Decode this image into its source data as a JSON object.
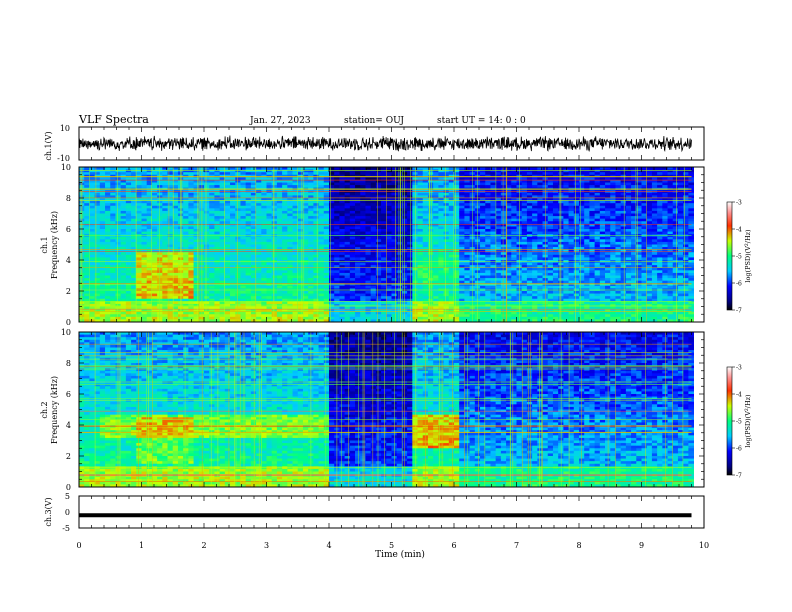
{
  "header": {
    "title": "VLF Spectra",
    "date": "Jan. 27, 2023",
    "station": "station= OUJ",
    "start": "start  UT =   14: 0  : 0"
  },
  "chart_data": [
    {
      "type": "line",
      "panel": "waveform-ch1",
      "ylabel": "ch.1(V)",
      "ylim": [
        -10,
        10
      ],
      "yticks": [
        "10",
        "-10"
      ],
      "xlim": [
        0,
        10
      ],
      "description_values": {
        "mean": 0,
        "typical_amplitude": 3.5
      },
      "trace_end": 9.8
    },
    {
      "type": "heatmap",
      "panel": "spectrogram-ch1",
      "ylabel_line1": "ch.1",
      "ylabel_line2": "Frequency (kHz)",
      "ylim": [
        0,
        10
      ],
      "yticks": [
        "0",
        "2",
        "4",
        "6",
        "8",
        "10"
      ],
      "xlim": [
        0,
        10
      ],
      "colorbar": {
        "label": "log(PSD)(V²/Hz)",
        "range": [
          -7,
          -3
        ],
        "ticks": [
          "-3",
          "-4",
          "-5",
          "-6",
          "-7"
        ]
      }
    },
    {
      "type": "heatmap",
      "panel": "spectrogram-ch2",
      "ylabel_line1": "ch.2",
      "ylabel_line2": "Frequency (kHz)",
      "ylim": [
        0,
        10
      ],
      "yticks": [
        "0",
        "2",
        "4",
        "6",
        "8",
        "10"
      ],
      "xlim": [
        0,
        10
      ],
      "colorbar": {
        "label": "log(PSD)(V²/Hz)",
        "range": [
          -7,
          -3
        ],
        "ticks": [
          "-3",
          "-4",
          "-5",
          "-6",
          "-7"
        ]
      }
    },
    {
      "type": "line",
      "panel": "waveform-ch3",
      "ylabel": "ch.3(V)",
      "ylim": [
        -5,
        5
      ],
      "yticks": [
        "5",
        "0",
        "-5"
      ],
      "xlim": [
        0,
        10
      ],
      "level": -1,
      "trace_end": 9.8
    }
  ],
  "xaxis": {
    "label": "Time  (min)",
    "ticks": [
      "0",
      "1",
      "2",
      "3",
      "4",
      "5",
      "6",
      "7",
      "8",
      "9",
      "10"
    ]
  }
}
